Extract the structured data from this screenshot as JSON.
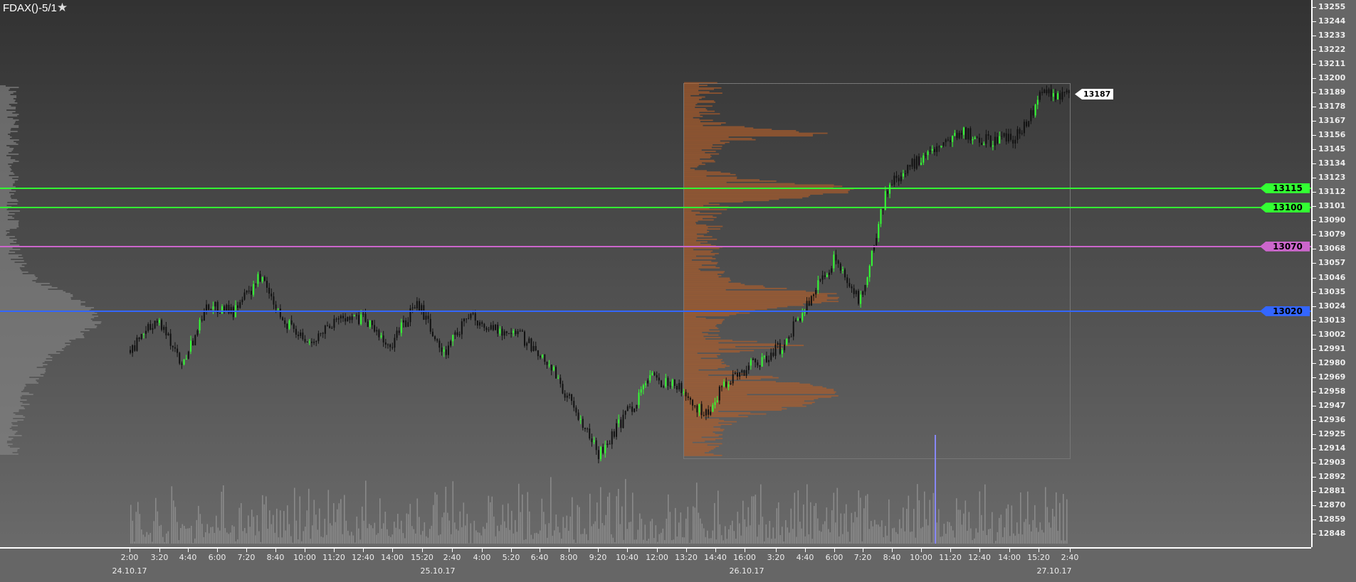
{
  "title": "FDAX()-5/1",
  "title_icon": "star-icon",
  "chart_data": {
    "type": "candlestick",
    "y_ticks": [
      "13255",
      "13244",
      "13233",
      "13222",
      "13211",
      "13200",
      "13189",
      "13178",
      "13167",
      "13156",
      "13145",
      "13134",
      "13123",
      "13112",
      "13101",
      "13090",
      "13079",
      "13068",
      "13057",
      "13046",
      "13035",
      "13024",
      "13013",
      "13002",
      "12991",
      "12980",
      "12969",
      "12958",
      "12947",
      "12936",
      "12925",
      "12914",
      "12903",
      "12892",
      "12881",
      "12870",
      "12859",
      "12848"
    ],
    "ylim": [
      12848,
      13255
    ],
    "x_ticks": [
      "2:00",
      "3:20",
      "4:40",
      "6:00",
      "7:20",
      "8:40",
      "10:00",
      "11:20",
      "12:40",
      "14:00",
      "15:20",
      "2:40",
      "4:00",
      "5:20",
      "6:40",
      "8:00",
      "9:20",
      "10:40",
      "12:00",
      "13:20",
      "14:40",
      "16:00",
      "3:20",
      "4:40",
      "6:00",
      "7:20",
      "8:40",
      "10:00",
      "11:20",
      "12:40",
      "14:00",
      "15:20",
      "2:40"
    ],
    "dates": [
      "24.10.17",
      "25.10.17",
      "26.10.17",
      "27.10.17"
    ],
    "price_path": [
      12990,
      13014,
      12980,
      13024,
      13020,
      13047,
      13010,
      12997,
      13017,
      13014,
      12993,
      13027,
      12986,
      13017,
      13007,
      13000,
      12980,
      12946,
      12909,
      12940,
      12968,
      12961,
      12940,
      12968,
      12980,
      12993,
      13027,
      13061,
      13027,
      13114,
      13134,
      13148,
      13158,
      13151,
      13155,
      13189,
      13187
    ],
    "last_price": "13187",
    "levels": [
      {
        "label": "13115",
        "price": 13115,
        "color": "#33ff33"
      },
      {
        "label": "13100",
        "price": 13100,
        "color": "#33ff33"
      },
      {
        "label": "13070",
        "price": 13070,
        "color": "#cc66cc"
      },
      {
        "label": "13020",
        "price": 13020,
        "color": "#3366ff"
      }
    ],
    "profile_range": [
      12908,
      13197
    ],
    "colors": {
      "profile": "#b5602a",
      "up": "#33ff33",
      "down": "#111111",
      "volume": "#9a9a9a",
      "volume_spike": "#8888ff"
    }
  }
}
